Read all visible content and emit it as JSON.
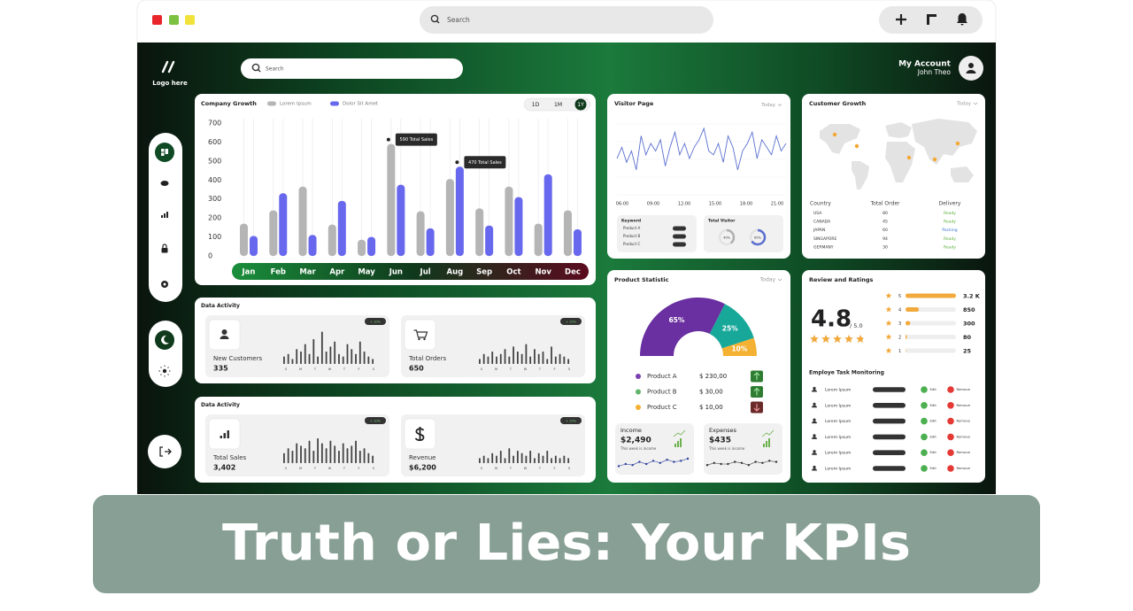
{
  "browser": {
    "search": "Search"
  },
  "sidebar": {
    "logo": "Logo here"
  },
  "header": {
    "search": "Search",
    "account": "My Account",
    "user": "John Theo"
  },
  "company_growth": {
    "type": "bar",
    "title": "Company Growth",
    "ranges": [
      "1D",
      "1M",
      "1Y"
    ],
    "categories": [
      "Jan",
      "Feb",
      "Mar",
      "Apr",
      "May",
      "Jun",
      "Jul",
      "Aug",
      "Sep",
      "Oct",
      "Nov",
      "Dec"
    ],
    "series": [
      {
        "name": "Lorem Ipsum",
        "color": "#b5b5b5",
        "values": [
          170,
          240,
          365,
          165,
          85,
          590,
          235,
          405,
          250,
          365,
          170,
          240
        ]
      },
      {
        "name": "Dolor Sit Amet",
        "color": "#6868ee",
        "values": [
          105,
          330,
          110,
          290,
          100,
          375,
          145,
          470,
          160,
          310,
          430,
          140
        ]
      }
    ],
    "annotations": [
      "590 Total Sales",
      "470 Total Sales"
    ],
    "ylim": [
      0,
      700
    ],
    "yticks": [
      0,
      100,
      200,
      300,
      400,
      500,
      600,
      700
    ]
  },
  "visitor_page": {
    "type": "line",
    "title": "Visitor Page",
    "filter": "Today",
    "x_labels": [
      "06:00",
      "09:00",
      "12:00",
      "15:00",
      "18:00",
      "21:00"
    ],
    "color": "#5a6fd0",
    "values": [
      40,
      55,
      35,
      50,
      25,
      70,
      45,
      60,
      50,
      65,
      30,
      55,
      75,
      45,
      60,
      40,
      55,
      65,
      80,
      50,
      45,
      60,
      35,
      70,
      55,
      25,
      50,
      60,
      75,
      40,
      65,
      55,
      45,
      70,
      50,
      60
    ],
    "keyword": {
      "title": "Keyword",
      "items": [
        "Product A",
        "Product B",
        "Product C"
      ]
    },
    "total_visitor": {
      "title": "Total Visitor",
      "values": [
        40,
        65
      ],
      "value_labels": [
        "40%",
        "65%"
      ],
      "colors": [
        "#b0b0b0",
        "#5a6fd0"
      ]
    }
  },
  "customer_growth": {
    "title": "Customer Growth",
    "filter": "Today",
    "columns": [
      "Country",
      "Total Order",
      "Delivery"
    ],
    "rows": [
      [
        "USA",
        80,
        "Ready"
      ],
      [
        "CANADA",
        45,
        "Ready"
      ],
      [
        "JAPAN",
        60,
        "Packing"
      ],
      [
        "SINGAPORE",
        94,
        "Ready"
      ],
      [
        "GERMANY",
        30,
        "Ready"
      ]
    ],
    "delivery_colors": [
      "#5cae3c",
      "#5cae3c",
      "#3a74d0",
      "#5cae3c",
      "#5cae3c"
    ]
  },
  "data_activity": [
    {
      "title": "Data Activity",
      "cards": [
        {
          "label": "New Customers",
          "value": 335,
          "badge": "+ 10%",
          "days": [
            "S",
            "M",
            "T",
            "W",
            "T",
            "F",
            "S"
          ],
          "bars": [
            3,
            4,
            2,
            6,
            5,
            8,
            4,
            10,
            3,
            13,
            5,
            7,
            9,
            4,
            3,
            8,
            6,
            4,
            9,
            5,
            3,
            2
          ]
        },
        {
          "label": "Total Orders",
          "value": 650,
          "badge": "+ 10%",
          "days": [
            "S",
            "M",
            "T",
            "W",
            "T",
            "F",
            "S"
          ],
          "bars": [
            2,
            4,
            3,
            5,
            3,
            4,
            6,
            3,
            7,
            5,
            4,
            8,
            3,
            6,
            4,
            5,
            2,
            7,
            3,
            4,
            3,
            2
          ]
        }
      ]
    },
    {
      "title": "Data Activity",
      "cards": [
        {
          "label": "Total Sales",
          "value": "3,402",
          "badge": "+ 10%",
          "days": [
            "S",
            "M",
            "T",
            "W",
            "T",
            "F",
            "S"
          ],
          "bars": [
            4,
            6,
            5,
            8,
            7,
            6,
            9,
            5,
            10,
            8,
            6,
            9,
            7,
            5,
            8,
            6,
            7,
            9,
            5,
            6,
            4,
            3
          ]
        },
        {
          "label": "Revenue",
          "value": "$6,200",
          "badge": "+ 10%",
          "days": [
            "S",
            "M",
            "T",
            "W",
            "T",
            "F",
            "S"
          ],
          "bars": [
            2,
            3,
            2,
            4,
            3,
            5,
            2,
            6,
            3,
            5,
            4,
            3,
            5,
            2,
            4,
            3,
            5,
            2,
            3,
            2,
            3,
            2
          ]
        }
      ]
    }
  ],
  "product_statistic": {
    "type": "pie",
    "title": "Product Statistic",
    "filter": "Today",
    "names": [
      "Product A",
      "Product B",
      "Product C"
    ],
    "values": [
      65,
      25,
      10
    ],
    "value_labels": [
      "65%",
      "25%",
      "10%"
    ],
    "colors": [
      "#6a2fa0",
      "#17a89a",
      "#f4b132"
    ],
    "legend_colors": [
      "#7a3fb0",
      "#62b36b",
      "#f4b132"
    ],
    "amounts": [
      "$ 230,00",
      "$ 30,00",
      "$ 10,00"
    ],
    "trends": [
      "up",
      "up",
      "down"
    ],
    "income": {
      "title": "Income",
      "value": "$2,490",
      "note": "This week is income",
      "trend": [
        3,
        5,
        4,
        7,
        5,
        8,
        6,
        9,
        7,
        8,
        10
      ]
    },
    "expenses": {
      "title": "Expenses",
      "value": "$435",
      "note": "This week is income",
      "trend": [
        4,
        6,
        5,
        5,
        7,
        6,
        4,
        7,
        6,
        8,
        7
      ]
    }
  },
  "reviews": {
    "title": "Review and Ratings",
    "score": 4.8,
    "scale": "/ 5.0",
    "ratings": {
      "stars": [
        5,
        4,
        3,
        2,
        1
      ],
      "values": [
        3200,
        850,
        300,
        80,
        25
      ],
      "value_labels": [
        "3.2 K",
        "850",
        "300",
        "80",
        "25"
      ]
    }
  },
  "tasks": {
    "title": "Employe Task Monitoring",
    "rows": [
      {
        "name": "Lorem Ipsum",
        "edit": "Edit",
        "remove": "Remove"
      },
      {
        "name": "Lorem Ipsum",
        "edit": "Edit",
        "remove": "Remove"
      },
      {
        "name": "Lorem Ipsum",
        "edit": "Edit",
        "remove": "Remove"
      },
      {
        "name": "Lorem Ipsum",
        "edit": "Edit",
        "remove": "Remove"
      },
      {
        "name": "Lorem Ipsum",
        "edit": "Edit",
        "remove": "Remove"
      },
      {
        "name": "Lorem Ipsum",
        "edit": "Edit",
        "remove": "Remove"
      }
    ]
  },
  "banner": {
    "title": "Truth or Lies: Your KPIs"
  }
}
